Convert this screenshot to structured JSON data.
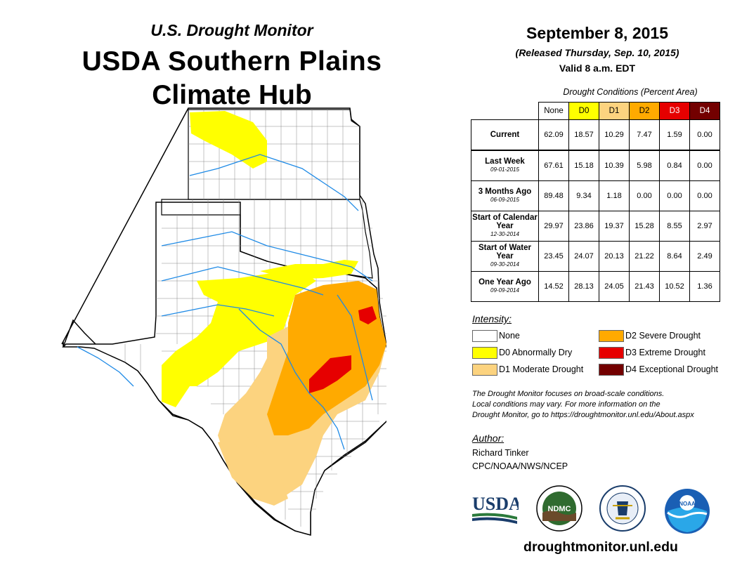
{
  "header": {
    "monitor_title": "U.S. Drought Monitor",
    "region_title_line1": "USDA Southern Plains",
    "region_title_line2": "Climate Hub"
  },
  "date": {
    "main": "September 8, 2015",
    "released": "(Released Thursday, Sep. 10, 2015)",
    "valid": "Valid 8 a.m. EDT"
  },
  "table": {
    "caption": "Drought Conditions (Percent Area)",
    "columns": [
      "None",
      "D0",
      "D1",
      "D2",
      "D3",
      "D4"
    ],
    "column_colors": [
      "#ffffff",
      "#ffff00",
      "#fcd37f",
      "#ffaa00",
      "#e60000",
      "#730000"
    ],
    "column_text_colors": [
      "#000000",
      "#000000",
      "#000000",
      "#000000",
      "#ffffff",
      "#ffffff"
    ],
    "rows": [
      {
        "label": "Current",
        "date": "",
        "values": [
          "62.09",
          "18.57",
          "10.29",
          "7.47",
          "1.59",
          "0.00"
        ]
      },
      {
        "label": "Last Week",
        "date": "09-01-2015",
        "values": [
          "67.61",
          "15.18",
          "10.39",
          "5.98",
          "0.84",
          "0.00"
        ]
      },
      {
        "label": "3 Months Ago",
        "date": "06-09-2015",
        "values": [
          "89.48",
          "9.34",
          "1.18",
          "0.00",
          "0.00",
          "0.00"
        ]
      },
      {
        "label": "Start of Calendar Year",
        "date": "12-30-2014",
        "values": [
          "29.97",
          "23.86",
          "19.37",
          "15.28",
          "8.55",
          "2.97"
        ]
      },
      {
        "label": "Start of Water Year",
        "date": "09-30-2014",
        "values": [
          "23.45",
          "24.07",
          "20.13",
          "21.22",
          "8.64",
          "2.49"
        ]
      },
      {
        "label": "One Year Ago",
        "date": "09-09-2014",
        "values": [
          "14.52",
          "28.13",
          "24.05",
          "21.43",
          "10.52",
          "1.36"
        ]
      }
    ]
  },
  "legend": {
    "title": "Intensity:",
    "items": [
      {
        "label": "None",
        "color": "#ffffff"
      },
      {
        "label": "D0 Abnormally Dry",
        "color": "#ffff00"
      },
      {
        "label": "D1 Moderate Drought",
        "color": "#fcd37f"
      },
      {
        "label": "D2 Severe Drought",
        "color": "#ffaa00"
      },
      {
        "label": "D3 Extreme Drought",
        "color": "#e60000"
      },
      {
        "label": "D4 Exceptional Drought",
        "color": "#730000"
      }
    ]
  },
  "note": {
    "line1": "The Drought Monitor focuses on broad-scale conditions.",
    "line2": "Local conditions may vary. For more information on the",
    "line3": "Drought Monitor, go to https://droughtmonitor.unl.edu/About.aspx"
  },
  "author": {
    "title": "Author:",
    "name": "Richard Tinker",
    "org": "CPC/NOAA/NWS/NCEP"
  },
  "logos": {
    "usda": "USDA",
    "ndmc": "NDMC",
    "noaa": "NOAA"
  },
  "website": "droughtmonitor.unl.edu"
}
